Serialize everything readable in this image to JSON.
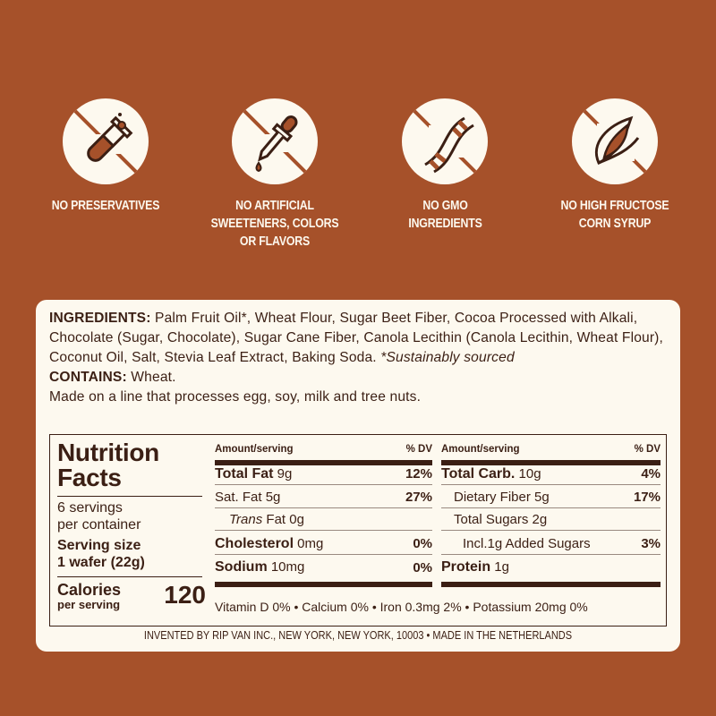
{
  "colors": {
    "background": "#a6512a",
    "panel": "#fdf9ef",
    "text": "#3b1f14"
  },
  "claims": [
    {
      "icon": "test-tube-icon",
      "label": "NO PRESERVATIVES"
    },
    {
      "icon": "dropper-icon",
      "label": "NO ARTIFICIAL SWEETENERS, COLORS OR FLAVORS"
    },
    {
      "icon": "dna-icon",
      "label": "NO GMO INGREDIENTS"
    },
    {
      "icon": "corn-icon",
      "label": "NO HIGH FRUCTOSE CORN SYRUP"
    }
  ],
  "ingredients": {
    "label": "INGREDIENTS:",
    "text": " Palm Fruit Oil*, Wheat Flour, Sugar Beet Fiber, Cocoa Processed with Alkali, Chocolate (Sugar, Chocolate), Sugar Cane Fiber, Canola Lecithin (Canola Lecithin, Wheat Flour), Coconut Oil, Salt, Stevia Leaf Extract, Baking Soda. ",
    "note": "*Sustainably sourced",
    "contains_label": "CONTAINS:",
    "contains": " Wheat.",
    "facility": "Made on a line that processes egg, soy, milk and tree nuts."
  },
  "nutrition": {
    "title1": "Nutrition",
    "title2": "Facts",
    "servings1": "6 servings",
    "servings2": "per container",
    "size_label": "Serving size",
    "size_value": "1 wafer (22g)",
    "calories_label": "Calories",
    "calories_sub": "per serving",
    "calories": "120",
    "amount_header": "Amount/serving",
    "dv_header": "% DV",
    "left": [
      {
        "name": "Total Fat",
        "amount": " 9g",
        "dv": "12%",
        "bold": true
      },
      {
        "name": "Sat. Fat 5g",
        "amount": "",
        "dv": "27%"
      },
      {
        "name": "Trans",
        "amount": " Fat  0g",
        "dv": ""
      },
      {
        "name": "Cholesterol",
        "amount": " 0mg",
        "dv": "0%",
        "bold": true
      },
      {
        "name": "Sodium",
        "amount": " 10mg",
        "dv": "0%",
        "bold": true
      }
    ],
    "right": [
      {
        "name": "Total Carb.",
        "amount": " 10g",
        "dv": "4%",
        "bold": true
      },
      {
        "name": "Dietary Fiber 5g",
        "amount": "",
        "dv": "17%"
      },
      {
        "name": "Total Sugars 2g",
        "amount": "",
        "dv": ""
      },
      {
        "name": "Incl.1g Added Sugars",
        "amount": "",
        "dv": "3%"
      },
      {
        "name": "Protein",
        "amount": " 1g",
        "dv": "",
        "bold": true
      }
    ],
    "vitamins": "Vitamin D 0% • Calcium 0% • Iron 0.3mg 2% • Potassium 20mg 0%"
  },
  "footer": "INVENTED BY RIP VAN INC., NEW YORK, NEW YORK, 10003 • MADE IN THE NETHERLANDS"
}
